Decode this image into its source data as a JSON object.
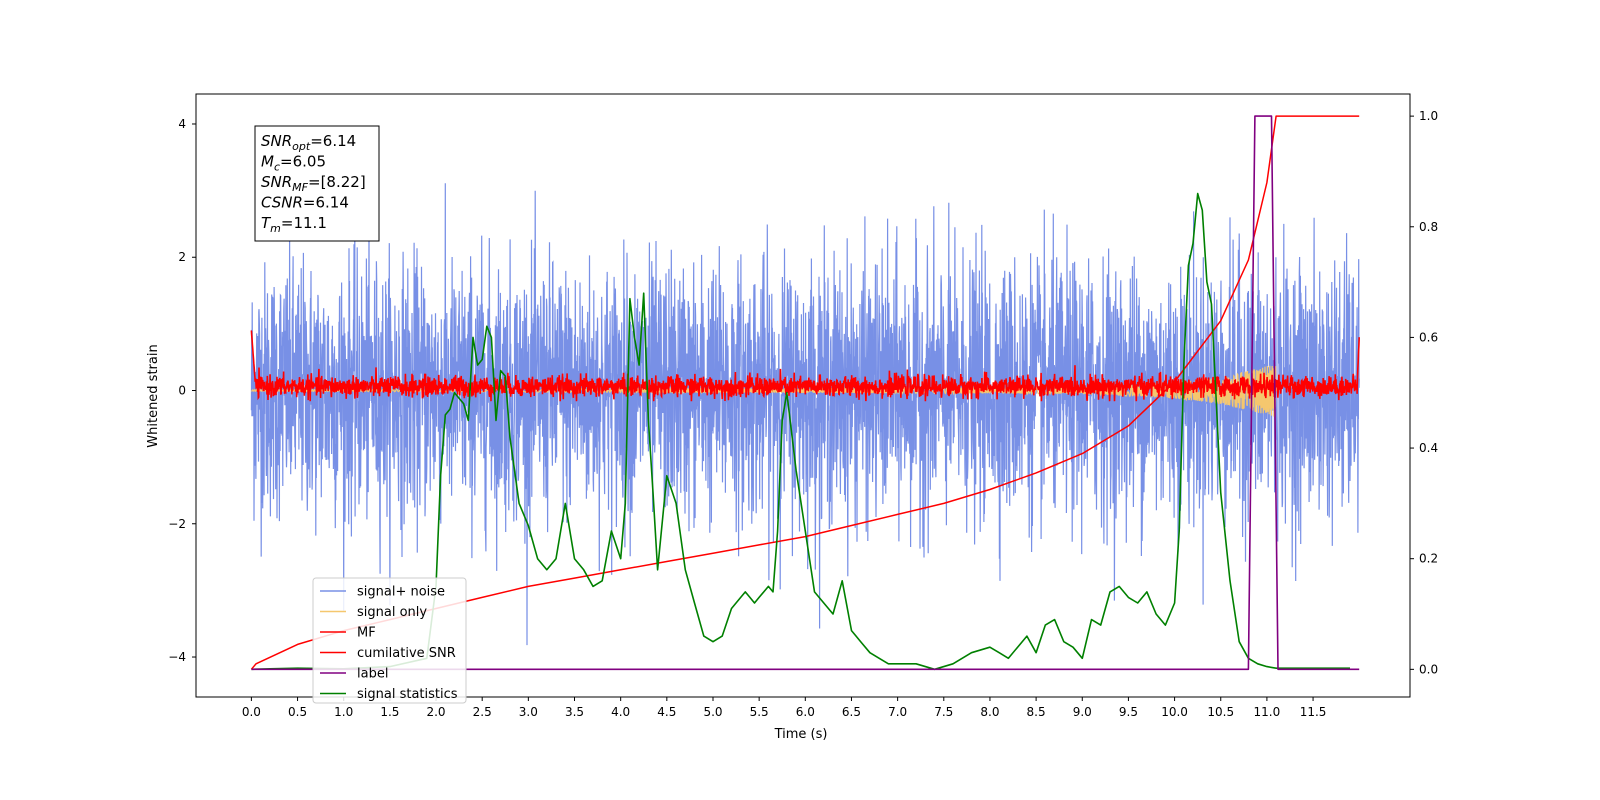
{
  "chart_data": {
    "type": "line",
    "xlabel": "Time (s)",
    "ylabel_left": "Whitened strain",
    "ylabel_right": "",
    "xlim": [
      -0.6,
      12.55
    ],
    "ylim_left": [
      -4.6,
      4.45
    ],
    "ylim_right": [
      -0.05,
      1.04
    ],
    "x_ticks": [
      "0.0",
      "0.5",
      "1.0",
      "1.5",
      "2.0",
      "2.5",
      "3.0",
      "3.5",
      "4.0",
      "4.5",
      "5.0",
      "5.5",
      "6.0",
      "6.5",
      "7.0",
      "7.5",
      "8.0",
      "8.5",
      "9.0",
      "9.5",
      "10.0",
      "10.5",
      "11.0",
      "11.5"
    ],
    "y_ticks_left": [
      "-4",
      "-2",
      "0",
      "2",
      "4"
    ],
    "y_ticks_right": [
      "0.0",
      "0.2",
      "0.4",
      "0.6",
      "0.8",
      "1.0"
    ],
    "grid": false,
    "legend_position": "lower-left",
    "annotation": {
      "lines": [
        {
          "symbol": "SNR",
          "sub": "opt",
          "value": "=6.14"
        },
        {
          "symbol": "M",
          "sub": "c",
          "value": "=6.05"
        },
        {
          "symbol": "SNR",
          "sub": "MF",
          "value": "=[8.22]"
        },
        {
          "symbol": "CSNR",
          "sub": "",
          "value": "=6.14"
        },
        {
          "symbol": "T",
          "sub": "m",
          "value": "=11.1"
        }
      ]
    },
    "series": [
      {
        "name": "signal+ noise",
        "color": "#7890e6",
        "axis": "left",
        "description_values": {
          "x_range": [
            0,
            12
          ],
          "amplitude": [
            -4,
            4
          ]
        }
      },
      {
        "name": "signal only",
        "color": "#f5c76e",
        "axis": "left",
        "description_values": {
          "x_range": [
            0,
            12
          ],
          "envelope": [
            [
              0,
              0.01
            ],
            [
              9,
              0.05
            ],
            [
              10,
              0.12
            ],
            [
              10.5,
              0.2
            ],
            [
              11.1,
              0.4
            ]
          ]
        }
      },
      {
        "name": "MF",
        "color": "#ff0000",
        "axis": "left",
        "description_values": {
          "x_range": [
            0,
            12
          ],
          "amplitude": [
            -0.15,
            0.35
          ]
        }
      },
      {
        "name": "cumilative SNR",
        "color": "#ff0000",
        "axis": "right",
        "x": [
          0.0,
          0.05,
          0.5,
          1.0,
          1.5,
          2.0,
          2.5,
          3.0,
          3.5,
          4.0,
          4.5,
          5.0,
          5.5,
          6.0,
          6.5,
          7.0,
          7.5,
          8.0,
          8.5,
          9.0,
          9.5,
          10.0,
          10.5,
          10.8,
          11.0,
          11.1,
          11.2,
          11.5,
          12.0
        ],
        "values": [
          0.0,
          0.01,
          0.045,
          0.07,
          0.09,
          0.11,
          0.13,
          0.15,
          0.165,
          0.18,
          0.195,
          0.21,
          0.225,
          0.24,
          0.26,
          0.28,
          0.3,
          0.325,
          0.355,
          0.39,
          0.44,
          0.52,
          0.63,
          0.74,
          0.88,
          1.0,
          1.0,
          1.0,
          1.0
        ]
      },
      {
        "name": "label",
        "color": "#800080",
        "axis": "right",
        "x": [
          0.0,
          10.8,
          10.87,
          11.05,
          11.12,
          12.0
        ],
        "values": [
          0.0,
          0.0,
          1.0,
          1.0,
          0.0,
          0.0
        ]
      },
      {
        "name": "signal statistics",
        "color": "#008000",
        "axis": "right",
        "x": [
          0.0,
          0.2,
          0.5,
          1.0,
          1.5,
          1.9,
          2.0,
          2.05,
          2.1,
          2.15,
          2.2,
          2.3,
          2.35,
          2.4,
          2.45,
          2.5,
          2.55,
          2.6,
          2.65,
          2.7,
          2.75,
          2.8,
          2.9,
          3.0,
          3.1,
          3.2,
          3.3,
          3.4,
          3.5,
          3.6,
          3.7,
          3.8,
          3.9,
          4.0,
          4.05,
          4.1,
          4.15,
          4.2,
          4.25,
          4.3,
          4.35,
          4.4,
          4.5,
          4.6,
          4.7,
          4.8,
          4.9,
          5.0,
          5.1,
          5.2,
          5.3,
          5.35,
          5.4,
          5.45,
          5.5,
          5.6,
          5.65,
          5.7,
          5.75,
          5.8,
          5.9,
          6.0,
          6.1,
          6.2,
          6.3,
          6.4,
          6.5,
          6.6,
          6.7,
          6.8,
          6.9,
          7.0,
          7.2,
          7.4,
          7.6,
          7.8,
          8.0,
          8.1,
          8.2,
          8.3,
          8.4,
          8.5,
          8.6,
          8.7,
          8.8,
          8.9,
          9.0,
          9.1,
          9.2,
          9.3,
          9.4,
          9.5,
          9.6,
          9.7,
          9.8,
          9.9,
          10.0,
          10.05,
          10.1,
          10.15,
          10.2,
          10.25,
          10.3,
          10.35,
          10.4,
          10.5,
          10.6,
          10.7,
          10.8,
          10.9,
          11.0,
          11.1,
          11.5,
          11.9
        ],
        "values": [
          0.0,
          0.001,
          0.002,
          0.001,
          0.005,
          0.02,
          0.15,
          0.35,
          0.46,
          0.47,
          0.5,
          0.48,
          0.45,
          0.6,
          0.55,
          0.56,
          0.62,
          0.6,
          0.45,
          0.54,
          0.53,
          0.42,
          0.3,
          0.26,
          0.2,
          0.18,
          0.2,
          0.3,
          0.2,
          0.18,
          0.15,
          0.16,
          0.25,
          0.2,
          0.3,
          0.67,
          0.6,
          0.55,
          0.68,
          0.45,
          0.32,
          0.18,
          0.35,
          0.3,
          0.18,
          0.12,
          0.06,
          0.05,
          0.06,
          0.11,
          0.13,
          0.14,
          0.13,
          0.12,
          0.13,
          0.15,
          0.14,
          0.25,
          0.45,
          0.5,
          0.36,
          0.25,
          0.14,
          0.12,
          0.1,
          0.16,
          0.07,
          0.05,
          0.03,
          0.02,
          0.01,
          0.01,
          0.01,
          0.0,
          0.01,
          0.03,
          0.04,
          0.03,
          0.02,
          0.04,
          0.06,
          0.03,
          0.08,
          0.09,
          0.05,
          0.04,
          0.02,
          0.09,
          0.08,
          0.14,
          0.15,
          0.13,
          0.12,
          0.14,
          0.1,
          0.08,
          0.12,
          0.25,
          0.55,
          0.73,
          0.77,
          0.86,
          0.83,
          0.7,
          0.66,
          0.32,
          0.16,
          0.05,
          0.02,
          0.01,
          0.005,
          0.002,
          0.002,
          0.002
        ]
      }
    ],
    "legend": [
      "signal+ noise",
      "signal only",
      "MF",
      "cumilative SNR",
      "label",
      "signal statistics"
    ]
  }
}
